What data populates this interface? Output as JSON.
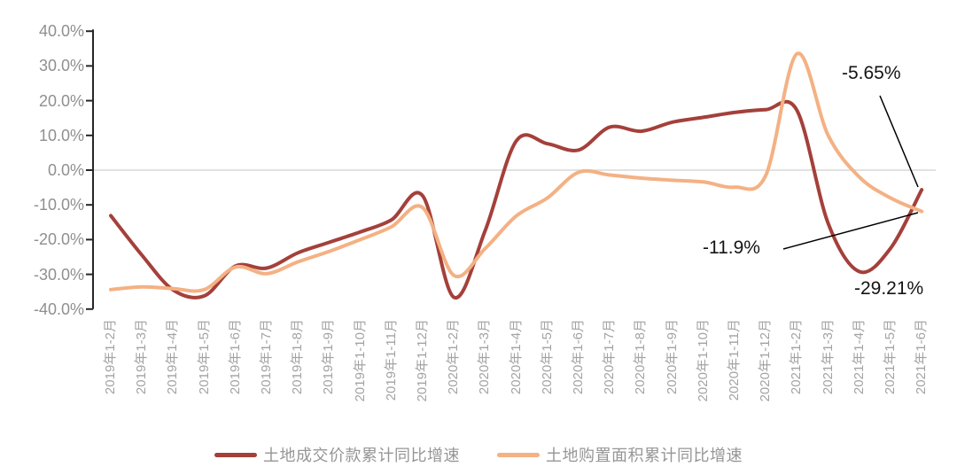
{
  "chart_data": {
    "type": "line",
    "title": "",
    "xlabel": "",
    "ylabel": "",
    "ylim": [
      -40,
      40
    ],
    "ytick_step": 10,
    "ytick_labels": [
      "40.0%",
      "30.0%",
      "20.0%",
      "10.0%",
      "0.0%",
      "-10.0%",
      "-20.0%",
      "-30.0%",
      "-40.0%"
    ],
    "grid": "zero-line-only",
    "legend_position": "bottom",
    "categories": [
      "2019年1-2月",
      "2019年1-3月",
      "2019年1-4月",
      "2019年1-5月",
      "2019年1-6月",
      "2019年1-7月",
      "2019年1-8月",
      "2019年1-9月",
      "2019年1-10月",
      "2019年1-11月",
      "2019年1-12月",
      "2020年1-2月",
      "2020年1-3月",
      "2020年1-4月",
      "2020年1-5月",
      "2020年1-6月",
      "2020年1-7月",
      "2020年1-8月",
      "2020年1-9月",
      "2020年1-10月",
      "2020年1-11月",
      "2020年1-12月",
      "2021年1-2月",
      "2021年1-3月",
      "2021年1-4月",
      "2021年1-5月",
      "2021年1-6月"
    ],
    "series": [
      {
        "name": "土地成交价款累计同比增速",
        "color": "#A4403A",
        "values": [
          -13.1,
          -24.5,
          -34.5,
          -36.2,
          -27.6,
          -28.2,
          -23.8,
          -20.8,
          -17.8,
          -14.3,
          -7.4,
          -36.6,
          -17.5,
          8.4,
          7.6,
          5.8,
          12.4,
          11.2,
          13.8,
          15.2,
          16.6,
          17.4,
          17.2,
          -15.3,
          -29.21,
          -22.5,
          -5.65
        ]
      },
      {
        "name": "土地购置面积累计同比增速",
        "color": "#F4B183",
        "values": [
          -34.4,
          -33.6,
          -34.1,
          -34.4,
          -27.9,
          -29.8,
          -26.4,
          -23.4,
          -20.0,
          -16.3,
          -10.8,
          -30.3,
          -22.6,
          -13.2,
          -8.0,
          -0.6,
          -1.4,
          -2.3,
          -2.9,
          -3.4,
          -4.9,
          -1.5,
          33.5,
          10.0,
          -2.0,
          -8.0,
          -11.9
        ]
      }
    ],
    "annotations": [
      {
        "text": "-5.65%",
        "series": "土地成交价款累计同比增速",
        "category": "2021年1-6月",
        "value": -5.65
      },
      {
        "text": "-11.9%",
        "series": "土地购置面积累计同比增速",
        "category": "2021年1-6月",
        "value": -11.9
      },
      {
        "text": "-29.21%",
        "series": "土地成交价款累计同比增速",
        "category": "2021年1-4月",
        "value": -29.21
      }
    ],
    "colors": {
      "axis": "#262626",
      "zero_line": "#D9D9D9",
      "annotation_text": "#141414",
      "leader_line": "#000000",
      "y_tick_label": "#8f8f8f",
      "x_tick_label": "#a3a3a3",
      "legend_text": "#969696",
      "background": "#ffffff"
    }
  }
}
